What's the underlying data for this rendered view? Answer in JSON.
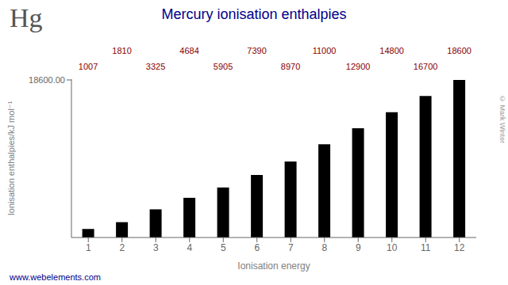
{
  "chart_data": {
    "type": "bar",
    "title": "Mercury ionisation enthalpies",
    "x_label": "Ionisation energy",
    "y_label": "Ionisation enthalpies/kJ mol⁻¹",
    "categories": [
      "1",
      "2",
      "3",
      "4",
      "5",
      "6",
      "7",
      "8",
      "9",
      "10",
      "11",
      "12"
    ],
    "values": [
      1007,
      1810,
      3325,
      4684,
      5905,
      7390,
      8970,
      11000,
      12900,
      14800,
      16700,
      18600
    ],
    "color": "#000000",
    "ylim": [
      0,
      18693
    ],
    "yticks": [
      {
        "value": 18600,
        "label": "18600.00"
      }
    ],
    "grid": false,
    "data_labels": true,
    "annotations": [
      "Hg",
      "© Mark Winter",
      "www.webelements.com"
    ]
  }
}
